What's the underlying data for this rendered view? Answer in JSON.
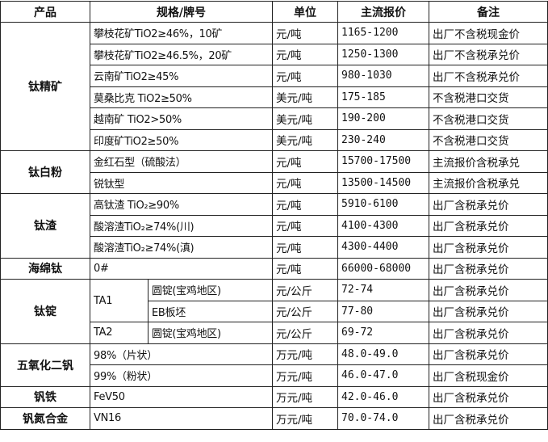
{
  "headers": [
    "产品",
    "规格/牌号",
    "单位",
    "主流报价",
    "备注"
  ],
  "groups": [
    {
      "product": "钛精矿",
      "rows": [
        {
          "spec": "攀枝花矿TiO2≥46%，10矿",
          "unit": "元/吨",
          "price": "1165-1200",
          "note": "出厂不含税现金价"
        },
        {
          "spec": "攀枝花矿TiO2≥46.5%，20矿",
          "unit": "元/吨",
          "price": "1250-1300",
          "note": "出厂不含税承兑价"
        },
        {
          "spec": "云南矿TiO2≥45%",
          "unit": "元/吨",
          "price": "980-1030",
          "note": "出厂不含税承兑价"
        },
        {
          "spec": "莫桑比克 TiO2≥50%",
          "unit": "美元/吨",
          "price": "175-185",
          "note": "不含税港口交货"
        },
        {
          "spec": "越南矿 TiO2>50%",
          "unit": "美元/吨",
          "price": "190-200",
          "note": "不含税港口交货"
        },
        {
          "spec": "印度矿TiO2≥50%",
          "unit": "美元/吨",
          "price": "230-240",
          "note": "不含税港口交货"
        }
      ]
    },
    {
      "product": "钛白粉",
      "rows": [
        {
          "spec": "金红石型（硫酸法）",
          "unit": "元/吨",
          "price": "15700-17500",
          "note": "主流报价含税承兑"
        },
        {
          "spec": "锐钛型",
          "unit": "元/吨",
          "price": "13500-14500",
          "note": "主流报价含税承兑"
        }
      ]
    },
    {
      "product": "钛渣",
      "rows": [
        {
          "spec": "高钛渣 TiO₂≥90%",
          "unit": "元/吨",
          "price": "5910-6100",
          "note": "出厂含税承兑价"
        },
        {
          "spec": "酸溶渣TiO₂≥74%(川)",
          "unit": "元/吨",
          "price": "4100-4300",
          "note": "出厂含税承兑价"
        },
        {
          "spec": "酸溶渣TiO₂≥74%(滇)",
          "unit": "元/吨",
          "price": "4300-4400",
          "note": "出厂含税承兑价"
        }
      ]
    },
    {
      "product": "海绵钛",
      "rows": [
        {
          "spec": "0#",
          "unit": "元/吨",
          "price": "66000-68000",
          "note": "出厂含税承兑价"
        }
      ]
    },
    {
      "product": "钛锭",
      "rows": [
        {
          "grade": "TA1",
          "grade_span": 2,
          "spec": "圆锭(宝鸡地区)",
          "unit": "元/公斤",
          "price": "72-74",
          "note": "出厂含税承兑价"
        },
        {
          "spec": "EB板坯",
          "unit": "元/公斤",
          "price": "77-80",
          "note": "出厂含税承兑价"
        },
        {
          "grade": "TA2",
          "grade_span": 1,
          "spec": "圆锭(宝鸡地区)",
          "unit": "元/公斤",
          "price": "69-72",
          "note": "出厂含税承兑价"
        }
      ]
    },
    {
      "product": "五氧化二钒",
      "rows": [
        {
          "spec": "98%（片状）",
          "unit": "万元/吨",
          "price": "48.0-49.0",
          "note": "出厂含税承兑价"
        },
        {
          "spec": "99%（粉状）",
          "unit": "万元/吨",
          "price": "46.0-47.0",
          "note": "出厂含税现金价"
        }
      ]
    },
    {
      "product": "钒铁",
      "rows": [
        {
          "spec": "FeV50",
          "unit": "万元/吨",
          "price": "42.0-46.0",
          "note": "出厂含税承兑价"
        }
      ]
    },
    {
      "product": "钒氮合金",
      "rows": [
        {
          "spec": "VN16",
          "unit": "万元/吨",
          "price": "70.0-74.0",
          "note": "出厂含税承兑价"
        }
      ]
    }
  ]
}
